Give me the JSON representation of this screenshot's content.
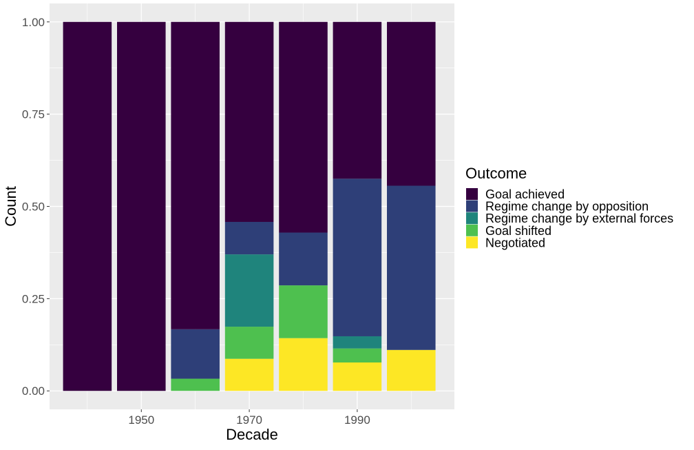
{
  "chart_data": {
    "type": "bar",
    "stacked": true,
    "x_numeric": [
      1940,
      1950,
      1960,
      1970,
      1980,
      1990,
      2000
    ],
    "xlabel": "Decade",
    "ylabel": "Count",
    "x_ticks": [
      "1950",
      "1970",
      "1990"
    ],
    "x_tick_values": [
      1950,
      1970,
      1990
    ],
    "y_ticks": [
      "0.00",
      "0.25",
      "0.50",
      "0.75",
      "1.00"
    ],
    "y_tick_values": [
      0,
      0.25,
      0.5,
      0.75,
      1.0
    ],
    "ylim": [
      -0.05,
      1.05
    ],
    "xlim": [
      1933,
      2008
    ],
    "grid": true,
    "legend": {
      "title": "Outcome",
      "placement": "right"
    },
    "series": [
      {
        "name": "Negotiated",
        "color": "#FDE725",
        "values": [
          0,
          0,
          0,
          0.087,
          0.143,
          0.077,
          0.111
        ]
      },
      {
        "name": "Goal shifted",
        "color": "#4EC04F",
        "values": [
          0,
          0,
          0.033,
          0.087,
          0.143,
          0.038,
          0
        ]
      },
      {
        "name": "Regime change by external forces",
        "color": "#1F847C",
        "values": [
          0,
          0,
          0,
          0.196,
          0,
          0.033,
          0
        ]
      },
      {
        "name": "Regime change by opposition",
        "color": "#2E3F78",
        "values": [
          0,
          0,
          0.134,
          0.088,
          0.143,
          0.427,
          0.445
        ]
      },
      {
        "name": "Goal achieved",
        "color": "#35003F",
        "values": [
          1,
          1,
          0.833,
          0.542,
          0.571,
          0.425,
          0.444
        ]
      }
    ],
    "legend_order": [
      "Goal achieved",
      "Regime change by opposition",
      "Regime change by external forces",
      "Goal shifted",
      "Negotiated"
    ]
  }
}
